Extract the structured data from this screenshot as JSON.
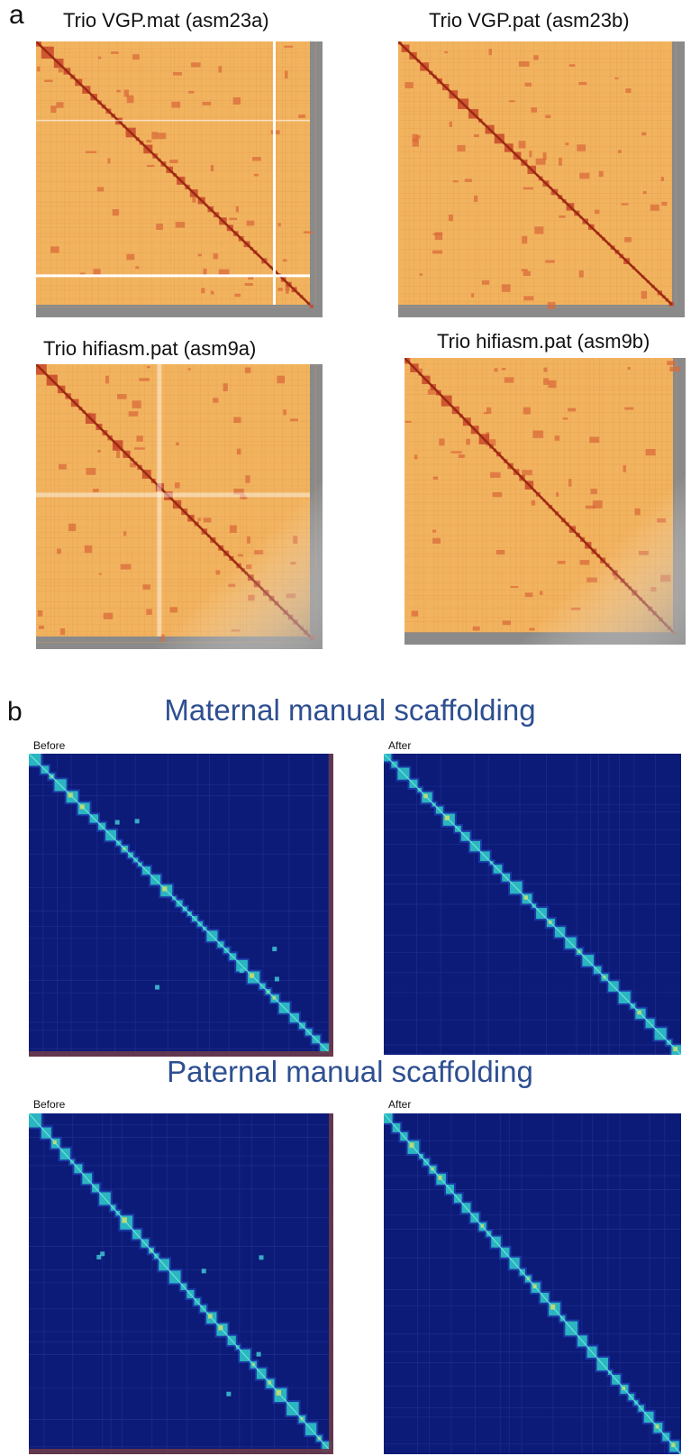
{
  "panel_a": {
    "letter": "a",
    "maps": [
      {
        "title": "Trio VGP.mat (asm23a)"
      },
      {
        "title": "Trio VGP.pat (asm23b)"
      },
      {
        "title": "Trio hifiasm.pat (asm9a)"
      },
      {
        "title": "Trio hifiasm.pat (asm9b)"
      }
    ]
  },
  "panel_b": {
    "letter": "b",
    "maternal_title": "Maternal manual scaffolding",
    "paternal_title": "Paternal manual scaffolding",
    "before_label": "Before",
    "after_label": "After"
  },
  "colors": {
    "orange_bg": "#f2b35f",
    "orange_diag": "#9b2a12",
    "grey_frame": "#8a8a8a",
    "navy_bg": "#0c1a78",
    "navy_diag": "#2fd3c8",
    "title_blue": "#2e4f91"
  }
}
